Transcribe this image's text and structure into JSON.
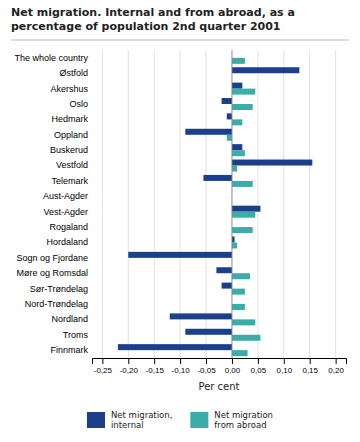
{
  "chart_data": {
    "type": "bar",
    "orientation": "horizontal",
    "title": "Net migration. Internal and from abroad, as a\npercentage of population 2nd quarter 2001",
    "categories": [
      "The whole country",
      "Østfold",
      "Akershus",
      "Oslo",
      "Hedmark",
      "Oppland",
      "Buskerud",
      "Vestfold",
      "Telemark",
      "Aust-Agder",
      "Vest-Agder",
      "Rogaland",
      "Hordaland",
      "Sogn og Fjordane",
      "Møre og Romsdal",
      "Sør-Trøndelag",
      "Nord-Trøndelag",
      "Nordland",
      "Troms",
      "Finnmark"
    ],
    "series": [
      {
        "name": "Net migration,\ninternal",
        "color": "#1b3f8b",
        "values": [
          0.0,
          0.13,
          0.02,
          -0.02,
          -0.01,
          -0.09,
          0.02,
          0.155,
          -0.055,
          0.0,
          0.055,
          0.0,
          0.005,
          -0.2,
          -0.03,
          -0.02,
          0.0,
          -0.12,
          -0.09,
          -0.22
        ]
      },
      {
        "name": "Net migration\nfrom abroad",
        "color": "#3aada8",
        "values": [
          0.025,
          0.0,
          0.045,
          0.04,
          0.02,
          -0.01,
          0.025,
          0.01,
          0.04,
          0.0,
          0.045,
          0.04,
          0.01,
          0.0,
          0.035,
          0.025,
          0.025,
          0.045,
          0.055,
          0.03
        ]
      }
    ],
    "xlabel": "Per cent",
    "xlim": [
      -0.27,
      0.22
    ],
    "xticks": [
      {
        "value": -0.25,
        "label": "-0,25"
      },
      {
        "value": -0.2,
        "label": "-0,20"
      },
      {
        "value": -0.15,
        "label": "-0,15"
      },
      {
        "value": -0.1,
        "label": "-0,10"
      },
      {
        "value": -0.05,
        "label": "-0,05"
      },
      {
        "value": 0.0,
        "label": "0,00"
      },
      {
        "value": 0.05,
        "label": "0,05"
      },
      {
        "value": 0.1,
        "label": "0,10"
      },
      {
        "value": 0.15,
        "label": "0,15"
      },
      {
        "value": 0.2,
        "label": "0,20"
      }
    ],
    "grid": true,
    "legend": "bottom"
  }
}
